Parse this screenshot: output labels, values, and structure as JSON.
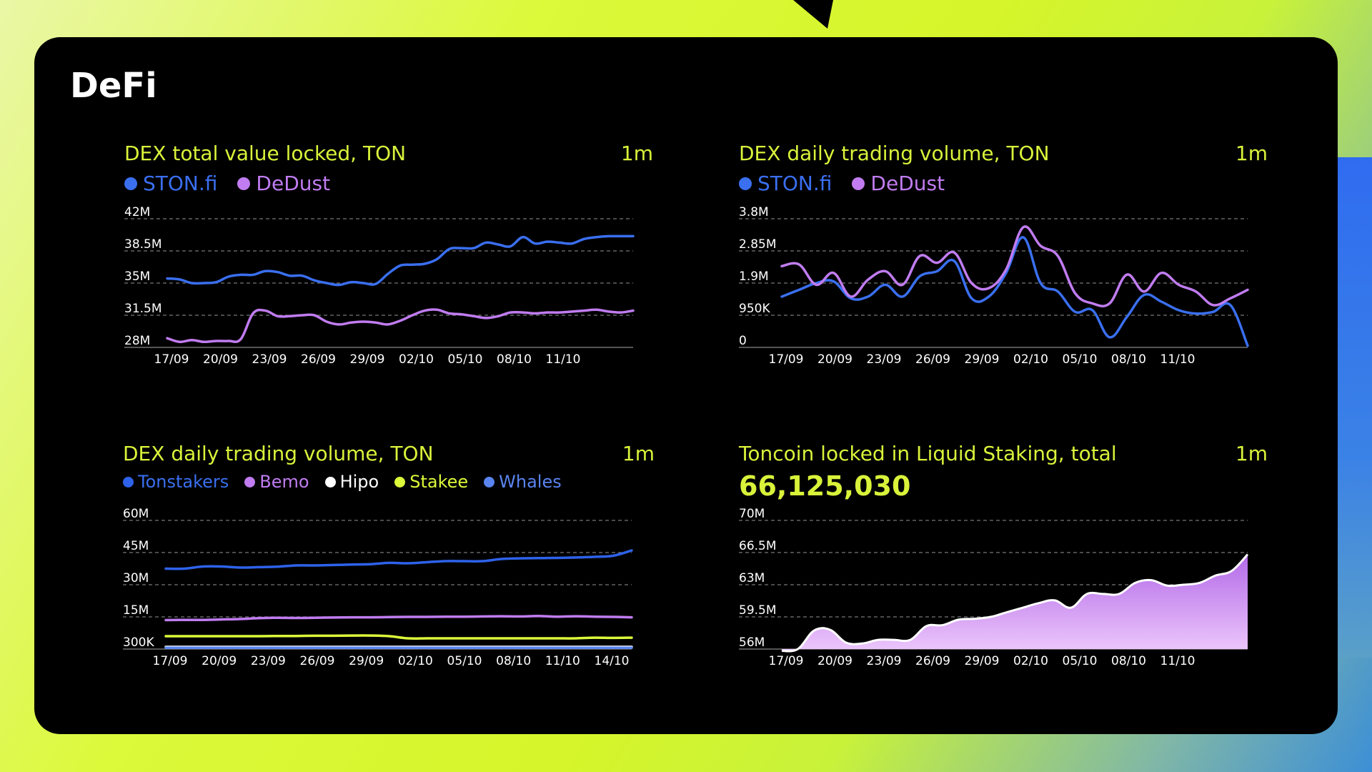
{
  "colors": {
    "accent": "#d9f23a",
    "ston": "#3a6ff0",
    "dedust": "#c07cf0",
    "tonstakers": "#2e62ea",
    "bemo": "#c07cf0",
    "hipo": "#ffffff",
    "stakee": "#dcf93a",
    "whales": "#5a84f0",
    "staking_fill": "#c98cf0"
  },
  "page": {
    "title": "DeFi"
  },
  "chart_data": [
    {
      "type": "line",
      "title": "DEX total value locked, TON",
      "period": "1m",
      "ytick_labels": [
        "42M",
        "38.5M",
        "35M",
        "31.5M",
        "28M"
      ],
      "ylim": [
        28,
        42
      ],
      "yunit": "M",
      "xtick_labels": [
        "17/09",
        "20/09",
        "23/09",
        "26/09",
        "29/09",
        "02/10",
        "05/10",
        "08/10",
        "11/10"
      ],
      "grid": true,
      "legend": "top-left",
      "series": [
        {
          "name": "STON.fi",
          "color": "#3a6ff0",
          "values": [
            35.5,
            35.4,
            35.0,
            35.0,
            35.1,
            35.7,
            35.9,
            35.9,
            36.3,
            36.2,
            35.8,
            35.8,
            35.3,
            35.0,
            34.8,
            35.1,
            35.0,
            34.9,
            36.0,
            36.9,
            37.0,
            37.1,
            37.6,
            38.7,
            38.8,
            38.8,
            39.4,
            39.2,
            39.0,
            40.0,
            39.3,
            39.5,
            39.4,
            39.3,
            39.8,
            40.0,
            40.1,
            40.1,
            40.1
          ]
        },
        {
          "name": "DeDust",
          "color": "#c07cf0",
          "values": [
            29.0,
            28.6,
            28.8,
            28.6,
            28.7,
            28.7,
            28.9,
            31.7,
            32.0,
            31.4,
            31.4,
            31.5,
            31.5,
            30.8,
            30.5,
            30.7,
            30.8,
            30.7,
            30.5,
            30.9,
            31.5,
            32.0,
            32.1,
            31.7,
            31.6,
            31.4,
            31.2,
            31.4,
            31.8,
            31.8,
            31.7,
            31.8,
            31.8,
            31.9,
            32.0,
            32.1,
            31.9,
            31.8,
            32.0
          ]
        }
      ]
    },
    {
      "type": "line",
      "title": "DEX daily trading volume, TON",
      "period": "1m",
      "ytick_labels": [
        "3.8M",
        "2.85M",
        "1.9M",
        "950K",
        "0"
      ],
      "ylim": [
        0,
        3.8
      ],
      "yunit": "M",
      "xtick_labels": [
        "17/09",
        "20/09",
        "23/09",
        "26/09",
        "29/09",
        "02/10",
        "05/10",
        "08/10",
        "11/10"
      ],
      "grid": true,
      "legend": "top-left",
      "series": [
        {
          "name": "STON.fi",
          "color": "#3a6ff0",
          "values": [
            1.5,
            1.7,
            1.9,
            1.95,
            1.45,
            1.5,
            1.85,
            1.5,
            2.1,
            2.25,
            2.55,
            1.45,
            1.5,
            2.2,
            3.25,
            1.9,
            1.65,
            1.05,
            1.1,
            0.3,
            0.9,
            1.55,
            1.35,
            1.1,
            1.0,
            1.05,
            1.25,
            0.05
          ]
        },
        {
          "name": "DeDust",
          "color": "#c07cf0",
          "values": [
            2.4,
            2.45,
            1.85,
            2.2,
            1.5,
            2.0,
            2.25,
            1.85,
            2.7,
            2.5,
            2.8,
            1.9,
            1.75,
            2.3,
            3.55,
            3.0,
            2.7,
            1.6,
            1.3,
            1.3,
            2.15,
            1.65,
            2.2,
            1.85,
            1.65,
            1.25,
            1.45,
            1.7
          ]
        }
      ]
    },
    {
      "type": "line",
      "title": "DEX daily trading volume, TON",
      "period": "1m",
      "ytick_labels": [
        "60M",
        "45M",
        "30M",
        "15M",
        "300K"
      ],
      "ylim": [
        0,
        60
      ],
      "yunit": "M",
      "xtick_labels": [
        "17/09",
        "20/09",
        "23/09",
        "26/09",
        "29/09",
        "02/10",
        "05/10",
        "08/10",
        "11/10",
        "14/10"
      ],
      "grid": true,
      "legend": "top-left",
      "series": [
        {
          "name": "Tonstakers",
          "color": "#2e62ea",
          "values": [
            37.5,
            37.5,
            38.5,
            38.5,
            38.0,
            38.2,
            38.4,
            39.0,
            39.0,
            39.2,
            39.4,
            39.6,
            40.2,
            40.0,
            40.5,
            41.0,
            41.0,
            41.0,
            42.0,
            42.3,
            42.4,
            42.5,
            42.7,
            43.0,
            43.5,
            46.0
          ]
        },
        {
          "name": "Bemo",
          "color": "#c07cf0",
          "values": [
            13.5,
            13.6,
            13.6,
            13.8,
            14.0,
            14.4,
            14.6,
            14.5,
            14.6,
            14.7,
            14.8,
            14.8,
            14.9,
            15.0,
            15.0,
            15.1,
            15.1,
            15.2,
            15.3,
            15.2,
            15.4,
            15.1,
            15.3,
            15.1,
            15.0,
            14.8
          ]
        },
        {
          "name": "Hipo",
          "color": "#ffffff",
          "values": [
            1.0,
            1.0,
            1.0,
            1.0,
            1.0,
            1.0,
            1.0,
            1.0,
            1.0,
            1.0,
            1.0,
            1.0,
            1.0,
            1.0,
            1.0,
            1.0,
            1.0,
            1.0,
            1.0,
            1.0,
            1.0,
            1.0,
            1.0,
            1.0,
            1.0,
            1.0
          ]
        },
        {
          "name": "Stakee",
          "color": "#dcf93a",
          "values": [
            6.0,
            6.0,
            6.0,
            6.0,
            6.0,
            6.0,
            6.1,
            6.1,
            6.2,
            6.2,
            6.3,
            6.3,
            6.0,
            5.0,
            5.0,
            5.0,
            5.0,
            5.0,
            5.0,
            5.0,
            5.0,
            5.0,
            5.0,
            5.3,
            5.2,
            5.3
          ]
        },
        {
          "name": "Whales",
          "color": "#5a84f0",
          "values": [
            0.6,
            0.6,
            0.6,
            0.6,
            0.6,
            0.6,
            0.6,
            0.6,
            0.6,
            0.6,
            0.6,
            0.6,
            0.6,
            0.6,
            0.6,
            0.6,
            0.6,
            0.6,
            0.6,
            0.6,
            0.6,
            0.6,
            0.6,
            0.6,
            0.6,
            0.6
          ]
        }
      ]
    },
    {
      "type": "area",
      "title": "Toncoin locked in Liquid Staking, total",
      "period": "1m",
      "big_value": "66,125,030",
      "ytick_labels": [
        "70M",
        "66.5M",
        "63M",
        "59.5M",
        "56M"
      ],
      "ylim": [
        56,
        70
      ],
      "yunit": "M",
      "xtick_labels": [
        "17/09",
        "20/09",
        "23/09",
        "26/09",
        "29/09",
        "02/10",
        "05/10",
        "08/10",
        "11/10"
      ],
      "grid": true,
      "series": [
        {
          "name": "",
          "color": "#c98cf0",
          "values": [
            55.8,
            56.0,
            58.0,
            58.1,
            56.7,
            56.6,
            57.0,
            57.0,
            57.0,
            58.5,
            58.6,
            59.2,
            59.3,
            59.5,
            60.0,
            60.5,
            61.0,
            61.3,
            60.5,
            62.0,
            62.0,
            62.0,
            63.2,
            63.5,
            62.9,
            63.0,
            63.2,
            64.0,
            64.5,
            66.3
          ]
        }
      ]
    }
  ]
}
